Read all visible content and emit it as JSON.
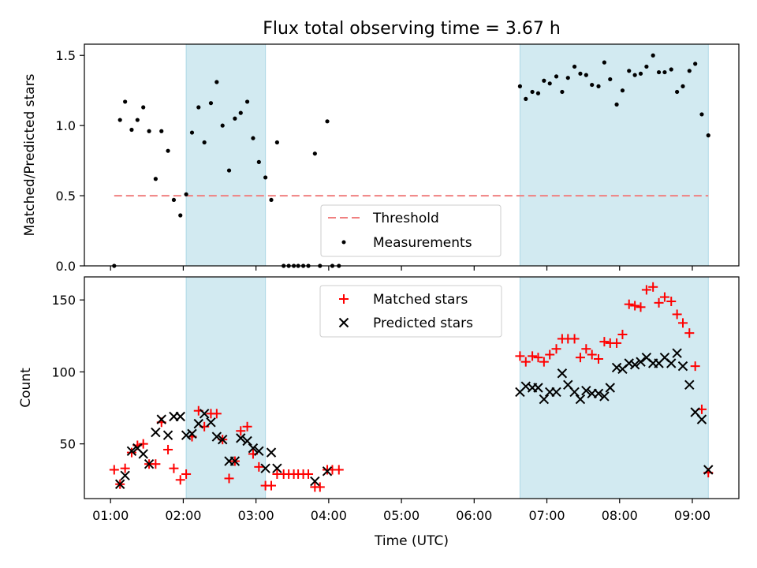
{
  "chart_data": {
    "title": "Flux total observing time = 3.67 h",
    "xlabel": "Time (UTC)",
    "x_tick_labels": [
      "01:00",
      "02:00",
      "03:00",
      "04:00",
      "05:00",
      "06:00",
      "07:00",
      "08:00",
      "09:00"
    ],
    "x_range_hours": [
      0.64,
      9.64
    ],
    "shaded_intervals": [
      [
        2.04,
        3.13
      ],
      [
        6.63,
        9.22
      ]
    ],
    "colors": {
      "shade": "#add8e6",
      "threshold": "#f08080",
      "measurements": "#000000",
      "matched": "#ff0000",
      "predicted": "#000000"
    },
    "top": {
      "type": "scatter",
      "ylabel": "Matched/Predicted stars",
      "ylim": [
        0,
        1.58
      ],
      "yticks": [
        "0.0",
        "0.5",
        "1.0",
        "1.5"
      ],
      "threshold": 0.5,
      "legend": {
        "placement": "lower-center",
        "entries": [
          "Threshold",
          "Measurements"
        ]
      },
      "measurements": [
        [
          1.05,
          0.0
        ],
        [
          1.13,
          1.04
        ],
        [
          1.2,
          1.17
        ],
        [
          1.29,
          0.97
        ],
        [
          1.37,
          1.04
        ],
        [
          1.45,
          1.13
        ],
        [
          1.53,
          0.96
        ],
        [
          1.62,
          0.62
        ],
        [
          1.7,
          0.96
        ],
        [
          1.79,
          0.82
        ],
        [
          1.87,
          0.47
        ],
        [
          1.96,
          0.36
        ],
        [
          2.04,
          0.51
        ],
        [
          2.12,
          0.95
        ],
        [
          2.21,
          1.13
        ],
        [
          2.29,
          0.88
        ],
        [
          2.38,
          1.16
        ],
        [
          2.46,
          1.31
        ],
        [
          2.54,
          1.0
        ],
        [
          2.63,
          0.68
        ],
        [
          2.71,
          1.05
        ],
        [
          2.79,
          1.09
        ],
        [
          2.88,
          1.17
        ],
        [
          2.96,
          0.91
        ],
        [
          3.04,
          0.74
        ],
        [
          3.13,
          0.63
        ],
        [
          3.21,
          0.47
        ],
        [
          3.29,
          0.88
        ],
        [
          3.38,
          0.0
        ],
        [
          3.45,
          0.0
        ],
        [
          3.52,
          0.0
        ],
        [
          3.58,
          0.0
        ],
        [
          3.65,
          0.0
        ],
        [
          3.72,
          0.0
        ],
        [
          3.81,
          0.8
        ],
        [
          3.88,
          0.0
        ],
        [
          3.98,
          1.03
        ],
        [
          4.05,
          0.0
        ],
        [
          4.14,
          0.0
        ],
        [
          6.63,
          1.28
        ],
        [
          6.71,
          1.19
        ],
        [
          6.8,
          1.24
        ],
        [
          6.88,
          1.23
        ],
        [
          6.96,
          1.32
        ],
        [
          7.04,
          1.3
        ],
        [
          7.13,
          1.35
        ],
        [
          7.21,
          1.24
        ],
        [
          7.29,
          1.34
        ],
        [
          7.38,
          1.42
        ],
        [
          7.46,
          1.37
        ],
        [
          7.54,
          1.36
        ],
        [
          7.62,
          1.29
        ],
        [
          7.71,
          1.28
        ],
        [
          7.79,
          1.45
        ],
        [
          7.87,
          1.33
        ],
        [
          7.96,
          1.15
        ],
        [
          8.04,
          1.25
        ],
        [
          8.13,
          1.39
        ],
        [
          8.21,
          1.36
        ],
        [
          8.29,
          1.37
        ],
        [
          8.37,
          1.42
        ],
        [
          8.46,
          1.5
        ],
        [
          8.54,
          1.38
        ],
        [
          8.62,
          1.38
        ],
        [
          8.71,
          1.4
        ],
        [
          8.79,
          1.24
        ],
        [
          8.87,
          1.28
        ],
        [
          8.96,
          1.39
        ],
        [
          9.04,
          1.44
        ],
        [
          9.13,
          1.08
        ],
        [
          9.22,
          0.93
        ]
      ]
    },
    "bottom": {
      "type": "scatter",
      "ylabel": "Count",
      "ylim": [
        12,
        166
      ],
      "yticks": [
        "50",
        "100",
        "150"
      ],
      "legend": {
        "placement": "upper-center",
        "entries": [
          "Matched stars",
          "Predicted stars"
        ]
      },
      "series": [
        {
          "name": "Matched stars",
          "marker": "plus",
          "points": [
            [
              1.05,
              32
            ],
            [
              1.13,
              22
            ],
            [
              1.2,
              33
            ],
            [
              1.29,
              44
            ],
            [
              1.37,
              49
            ],
            [
              1.45,
              50
            ],
            [
              1.53,
              36
            ],
            [
              1.62,
              36
            ],
            [
              1.7,
              65
            ],
            [
              1.79,
              46
            ],
            [
              1.87,
              33
            ],
            [
              1.96,
              25
            ],
            [
              2.04,
              29
            ],
            [
              2.12,
              55
            ],
            [
              2.21,
              73
            ],
            [
              2.29,
              62
            ],
            [
              2.38,
              71
            ],
            [
              2.46,
              71
            ],
            [
              2.54,
              53
            ],
            [
              2.63,
              26
            ],
            [
              2.71,
              38
            ],
            [
              2.79,
              59
            ],
            [
              2.88,
              62
            ],
            [
              2.96,
              43
            ],
            [
              3.04,
              34
            ],
            [
              3.13,
              21
            ],
            [
              3.21,
              21
            ],
            [
              3.29,
              29
            ],
            [
              3.38,
              29
            ],
            [
              3.45,
              29
            ],
            [
              3.52,
              29
            ],
            [
              3.58,
              29
            ],
            [
              3.65,
              29
            ],
            [
              3.72,
              29
            ],
            [
              3.81,
              20
            ],
            [
              3.88,
              20
            ],
            [
              3.98,
              32
            ],
            [
              4.05,
              32
            ],
            [
              4.14,
              32
            ],
            [
              6.63,
              111
            ],
            [
              6.71,
              107
            ],
            [
              6.8,
              111
            ],
            [
              6.88,
              110
            ],
            [
              6.96,
              107
            ],
            [
              7.04,
              112
            ],
            [
              7.13,
              116
            ],
            [
              7.21,
              123
            ],
            [
              7.29,
              123
            ],
            [
              7.38,
              123
            ],
            [
              7.46,
              110
            ],
            [
              7.54,
              116
            ],
            [
              7.62,
              112
            ],
            [
              7.71,
              109
            ],
            [
              7.79,
              121
            ],
            [
              7.87,
              120
            ],
            [
              7.96,
              120
            ],
            [
              8.04,
              126
            ],
            [
              8.13,
              147
            ],
            [
              8.21,
              146
            ],
            [
              8.29,
              145
            ],
            [
              8.37,
              157
            ],
            [
              8.46,
              159
            ],
            [
              8.54,
              148
            ],
            [
              8.62,
              152
            ],
            [
              8.71,
              149
            ],
            [
              8.79,
              140
            ],
            [
              8.87,
              134
            ],
            [
              8.96,
              127
            ],
            [
              9.04,
              104
            ],
            [
              9.13,
              74
            ],
            [
              9.22,
              30
            ]
          ]
        },
        {
          "name": "Predicted stars",
          "marker": "x",
          "points": [
            [
              1.13,
              22
            ],
            [
              1.2,
              28
            ],
            [
              1.29,
              45
            ],
            [
              1.37,
              47
            ],
            [
              1.45,
              43
            ],
            [
              1.53,
              36
            ],
            [
              1.62,
              58
            ],
            [
              1.7,
              67
            ],
            [
              1.79,
              56
            ],
            [
              1.87,
              69
            ],
            [
              1.96,
              69
            ],
            [
              2.04,
              56
            ],
            [
              2.12,
              57
            ],
            [
              2.21,
              64
            ],
            [
              2.29,
              71
            ],
            [
              2.38,
              65
            ],
            [
              2.46,
              55
            ],
            [
              2.54,
              53
            ],
            [
              2.63,
              38
            ],
            [
              2.71,
              38
            ],
            [
              2.79,
              54
            ],
            [
              2.88,
              52
            ],
            [
              2.96,
              47
            ],
            [
              3.04,
              45
            ],
            [
              3.13,
              33
            ],
            [
              3.21,
              44
            ],
            [
              3.29,
              33
            ],
            [
              3.81,
              24
            ],
            [
              3.98,
              31
            ],
            [
              6.63,
              86
            ],
            [
              6.71,
              90
            ],
            [
              6.8,
              89
            ],
            [
              6.88,
              89
            ],
            [
              6.96,
              81
            ],
            [
              7.04,
              86
            ],
            [
              7.13,
              86
            ],
            [
              7.21,
              99
            ],
            [
              7.29,
              91
            ],
            [
              7.38,
              86
            ],
            [
              7.46,
              81
            ],
            [
              7.54,
              87
            ],
            [
              7.62,
              85
            ],
            [
              7.71,
              85
            ],
            [
              7.79,
              83
            ],
            [
              7.87,
              89
            ],
            [
              7.96,
              103
            ],
            [
              8.04,
              102
            ],
            [
              8.13,
              106
            ],
            [
              8.21,
              105
            ],
            [
              8.29,
              107
            ],
            [
              8.37,
              110
            ],
            [
              8.46,
              106
            ],
            [
              8.54,
              106
            ],
            [
              8.62,
              110
            ],
            [
              8.71,
              106
            ],
            [
              8.79,
              113
            ],
            [
              8.87,
              104
            ],
            [
              8.96,
              91
            ],
            [
              9.04,
              72
            ],
            [
              9.13,
              67
            ],
            [
              9.22,
              32
            ]
          ]
        }
      ]
    }
  }
}
